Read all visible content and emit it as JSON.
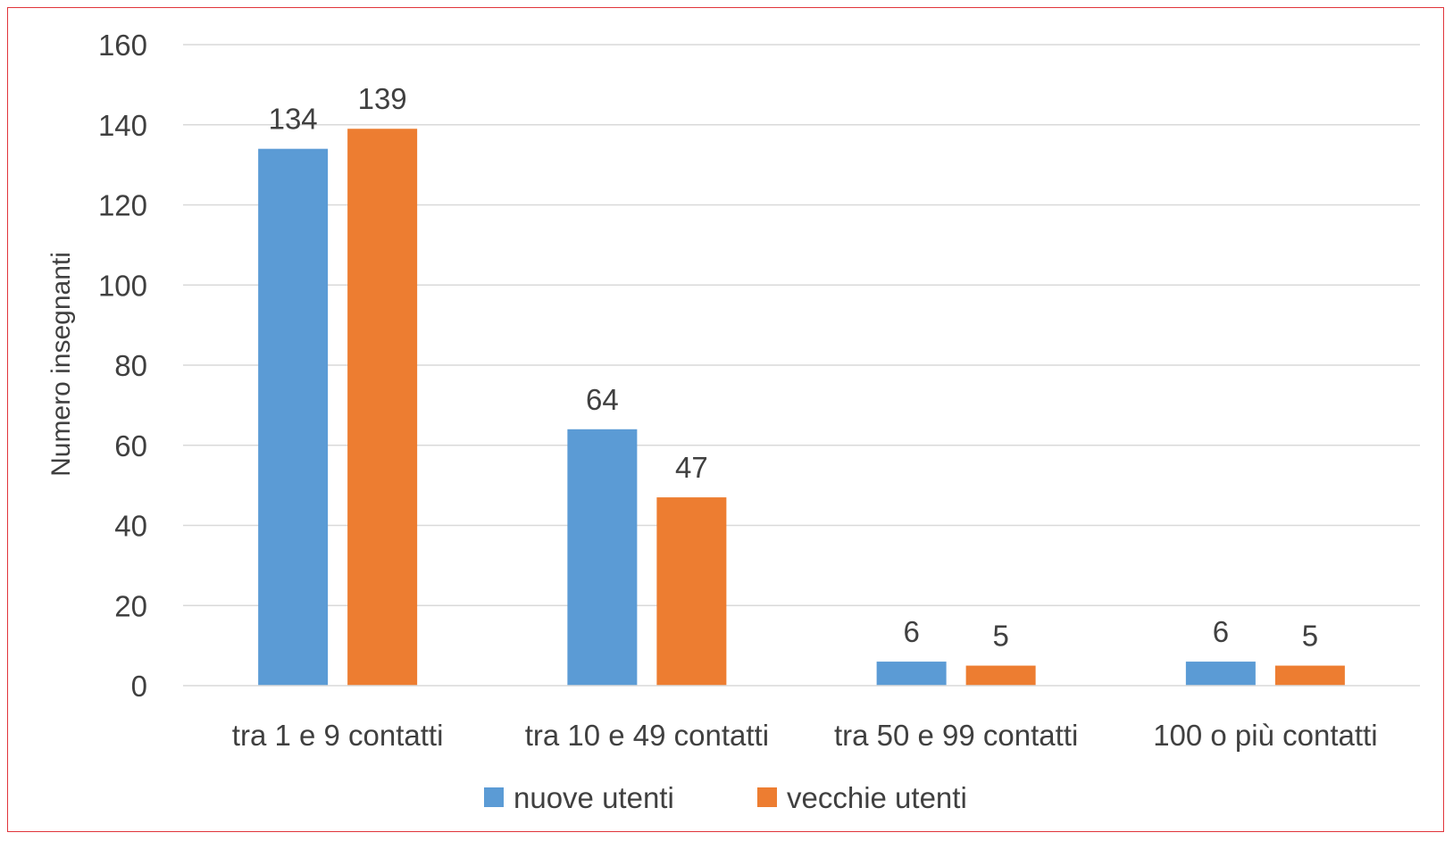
{
  "chart_data": {
    "type": "bar",
    "categories": [
      "tra 1 e 9 contatti",
      "tra 10 e 49 contatti",
      "tra 50 e 99 contatti",
      "100 o più contatti"
    ],
    "series": [
      {
        "name": "nuove utenti",
        "values": [
          134,
          64,
          6,
          6
        ],
        "color": "#5b9bd5"
      },
      {
        "name": "vecchie utenti",
        "values": [
          139,
          47,
          5,
          5
        ],
        "color": "#ed7d31"
      }
    ],
    "xlabel": "",
    "ylabel": "Numero insegnanti",
    "ylim": [
      0,
      160
    ],
    "yticks": [
      0,
      20,
      40,
      60,
      80,
      100,
      120,
      140,
      160
    ],
    "grid": true,
    "legend_position": "bottom",
    "frame_color": "#e0353b"
  }
}
